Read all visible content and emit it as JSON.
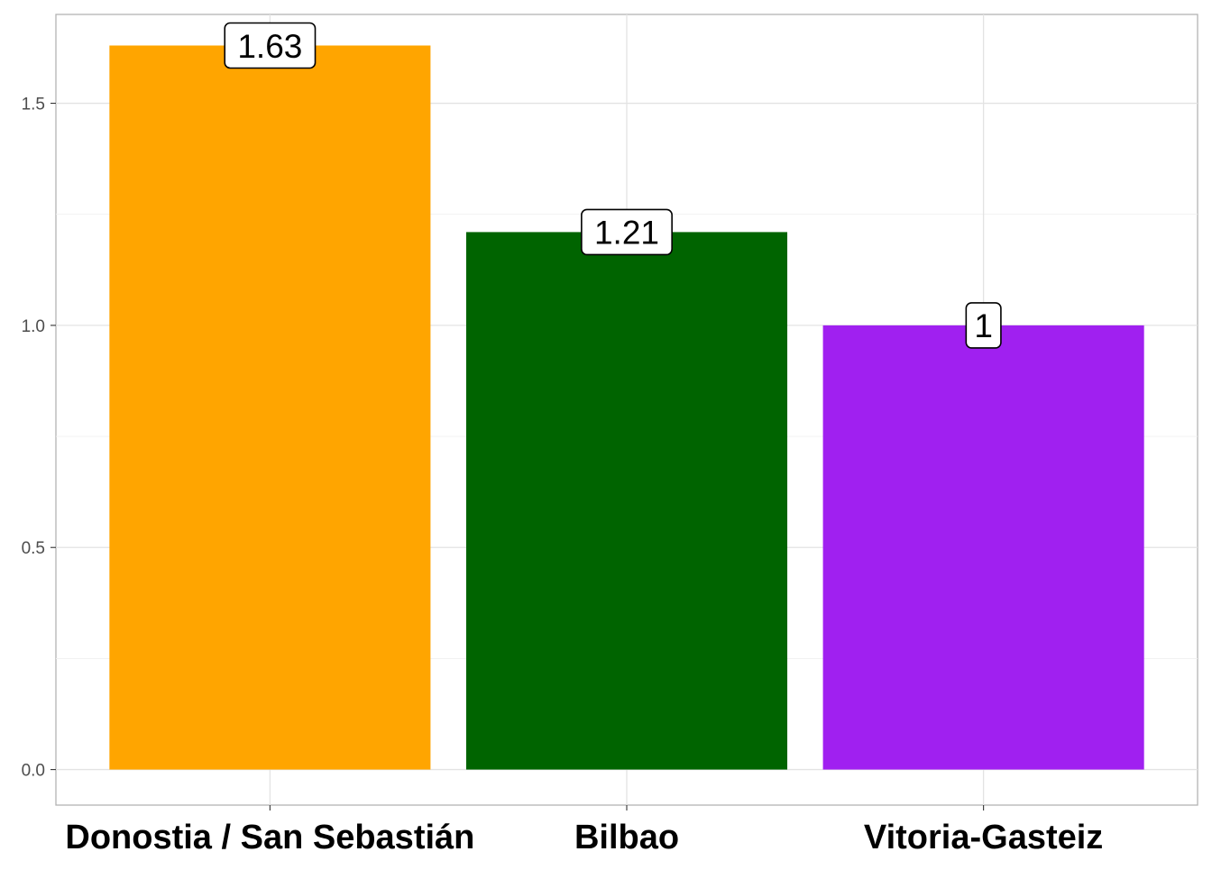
{
  "chart_data": {
    "type": "bar",
    "title": "",
    "xlabel": "",
    "ylabel": "",
    "categories": [
      "Donostia / San Sebastián",
      "Bilbao",
      "Vitoria-Gasteiz"
    ],
    "values": [
      1.63,
      1.21,
      1
    ],
    "value_labels": [
      "1.63",
      "1.21",
      "1"
    ],
    "colors": [
      "#FFA500",
      "#006400",
      "#A020F0"
    ],
    "ylim": [
      -0.08,
      1.7
    ],
    "yticks": [
      0.0,
      0.5,
      1.0,
      1.5
    ],
    "ytick_labels": [
      "0.0",
      "0.5",
      "1.0",
      "1.5"
    ],
    "grid": true,
    "legend": "none"
  }
}
